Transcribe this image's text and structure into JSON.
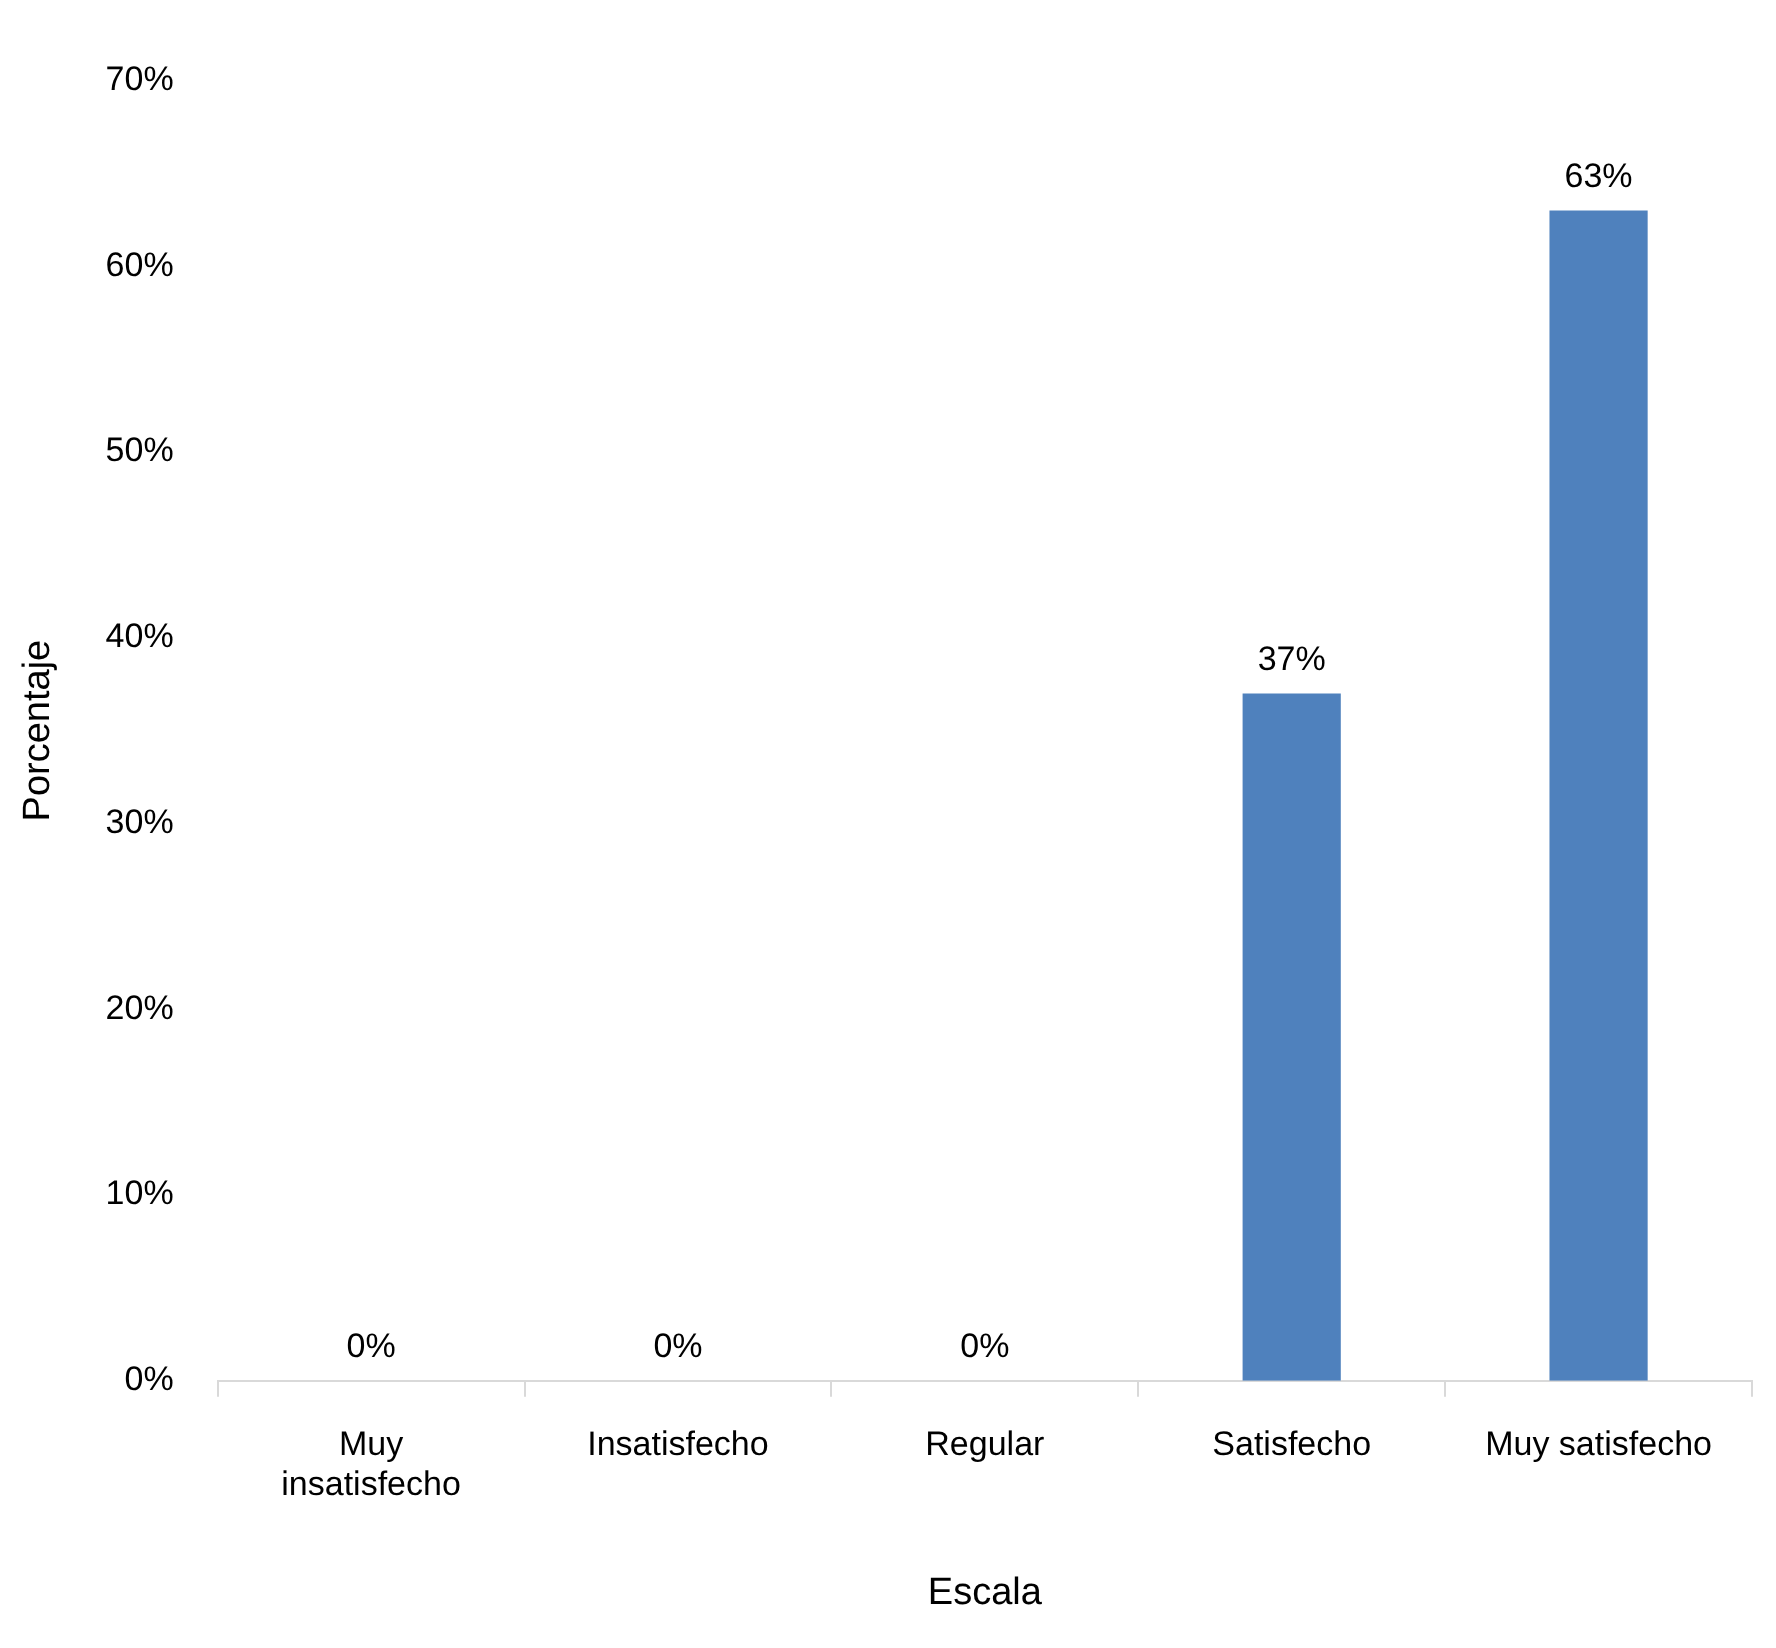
{
  "chart_data": {
    "type": "bar",
    "xlabel": "Escala",
    "ylabel": "Porcentaje",
    "categories": [
      "Muy insatisfecho",
      "Insatisfecho",
      "Regular",
      "Satisfecho",
      "Muy satisfecho"
    ],
    "values": [
      0,
      0,
      0,
      37,
      63
    ],
    "value_labels": [
      "0%",
      "0%",
      "0%",
      "37%",
      "63%"
    ],
    "color": "#4f81bd",
    "ylim": [
      0,
      70
    ],
    "yticks": [
      {
        "value": 0,
        "label": "0%"
      },
      {
        "value": 10,
        "label": "10%"
      },
      {
        "value": 20,
        "label": "20%"
      },
      {
        "value": 30,
        "label": "30%"
      },
      {
        "value": 40,
        "label": "40%"
      },
      {
        "value": 50,
        "label": "50%"
      },
      {
        "value": 60,
        "label": "60%"
      },
      {
        "value": 70,
        "label": "70%"
      }
    ],
    "grid": false,
    "legend": false
  }
}
